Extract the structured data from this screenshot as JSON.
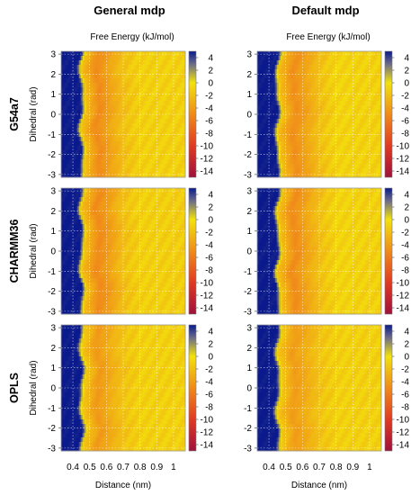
{
  "figure": {
    "columns": [
      "General mdp",
      "Default mdp"
    ],
    "rows": [
      "G54a7",
      "CHARMM36",
      "OPLS"
    ],
    "colorbar_label": "Free Energy (kJ/mol)",
    "xlabel": "Distance (nm)",
    "ylabel": "Dihedral (rad)"
  },
  "chart_data": [
    {
      "type": "heatmap",
      "row": "G54a7",
      "column": "General mdp",
      "xlabel": "",
      "ylabel": "Dihedral (rad)",
      "xlim": [
        0.33,
        1.07
      ],
      "ylim": [
        -3.14,
        3.14
      ],
      "xticks": [
        0.4,
        0.5,
        0.6,
        0.7,
        0.8,
        0.9,
        1
      ],
      "yticks": [
        3,
        2,
        1,
        0,
        -1,
        -2,
        -3
      ],
      "colorbar": {
        "label": "Free Energy (kJ/mol)",
        "range": [
          -15,
          5
        ],
        "ticks": [
          4,
          2,
          0,
          -2,
          -4,
          -6,
          -8,
          -10,
          -12,
          -14
        ]
      },
      "profile": {
        "x": [
          0.33,
          0.44,
          0.47,
          0.55,
          0.62,
          0.7,
          0.8,
          1.07
        ],
        "values": [
          5,
          5,
          -2,
          -5,
          -3.5,
          -2,
          -1,
          -1
        ]
      }
    },
    {
      "type": "heatmap",
      "row": "G54a7",
      "column": "Default mdp",
      "xlabel": "",
      "ylabel": "",
      "xlim": [
        0.33,
        1.07
      ],
      "ylim": [
        -3.14,
        3.14
      ],
      "xticks": [
        0.4,
        0.5,
        0.6,
        0.7,
        0.8,
        0.9,
        1
      ],
      "yticks": [
        3,
        2,
        1,
        0,
        -1,
        -2,
        -3
      ],
      "colorbar": {
        "label": "Free Energy (kJ/mol)",
        "range": [
          -15,
          5
        ],
        "ticks": [
          4,
          2,
          0,
          -2,
          -4,
          -6,
          -8,
          -10,
          -12,
          -14
        ]
      },
      "profile": {
        "x": [
          0.33,
          0.44,
          0.47,
          0.55,
          0.62,
          0.7,
          0.8,
          1.07
        ],
        "values": [
          5,
          5,
          -2,
          -4.8,
          -3.5,
          -2,
          -0.8,
          -1
        ]
      }
    },
    {
      "type": "heatmap",
      "row": "CHARMM36",
      "column": "General mdp",
      "xlabel": "",
      "ylabel": "Dihedral (rad)",
      "xlim": [
        0.33,
        1.07
      ],
      "ylim": [
        -3.14,
        3.14
      ],
      "xticks": [
        0.4,
        0.5,
        0.6,
        0.7,
        0.8,
        0.9,
        1
      ],
      "yticks": [
        3,
        2,
        1,
        0,
        -1,
        -2,
        -3
      ],
      "colorbar": {
        "label": "Free Energy (kJ/mol)",
        "range": [
          -15,
          5
        ],
        "ticks": [
          4,
          2,
          0,
          -2,
          -4,
          -6,
          -8,
          -10,
          -12,
          -14
        ]
      },
      "profile": {
        "x": [
          0.33,
          0.44,
          0.47,
          0.55,
          0.62,
          0.7,
          0.8,
          1.07
        ],
        "values": [
          5,
          5,
          -2,
          -5,
          -3.8,
          -2,
          -1,
          -1.2
        ]
      }
    },
    {
      "type": "heatmap",
      "row": "CHARMM36",
      "column": "Default mdp",
      "xlabel": "",
      "ylabel": "",
      "xlim": [
        0.33,
        1.07
      ],
      "ylim": [
        -3.14,
        3.14
      ],
      "xticks": [
        0.4,
        0.5,
        0.6,
        0.7,
        0.8,
        0.9,
        1
      ],
      "yticks": [
        3,
        2,
        1,
        0,
        -1,
        -2,
        -3
      ],
      "colorbar": {
        "label": "Free Energy (kJ/mol)",
        "range": [
          -15,
          5
        ],
        "ticks": [
          4,
          2,
          0,
          -2,
          -4,
          -6,
          -8,
          -10,
          -12,
          -14
        ]
      },
      "profile": {
        "x": [
          0.33,
          0.44,
          0.47,
          0.55,
          0.62,
          0.7,
          0.8,
          1.07
        ],
        "values": [
          5,
          5,
          -2,
          -5,
          -3.5,
          -2,
          -0.8,
          -1
        ]
      }
    },
    {
      "type": "heatmap",
      "row": "OPLS",
      "column": "General mdp",
      "xlabel": "Distance (nm)",
      "ylabel": "Dihedral (rad)",
      "xlim": [
        0.33,
        1.07
      ],
      "ylim": [
        -3.14,
        3.14
      ],
      "xticks": [
        0.4,
        0.5,
        0.6,
        0.7,
        0.8,
        0.9,
        1
      ],
      "yticks": [
        3,
        2,
        1,
        0,
        -1,
        -2,
        -3
      ],
      "colorbar": {
        "label": "Free Energy (kJ/mol)",
        "range": [
          -15,
          5
        ],
        "ticks": [
          4,
          2,
          0,
          -2,
          -4,
          -6,
          -8,
          -10,
          -12,
          -14
        ]
      },
      "profile": {
        "x": [
          0.33,
          0.44,
          0.47,
          0.55,
          0.62,
          0.7,
          0.8,
          1.07
        ],
        "values": [
          5,
          5,
          -1.5,
          -4.2,
          -3,
          -1.8,
          -1,
          -1
        ]
      }
    },
    {
      "type": "heatmap",
      "row": "OPLS",
      "column": "Default mdp",
      "xlabel": "Distance (nm)",
      "ylabel": "",
      "xlim": [
        0.33,
        1.07
      ],
      "ylim": [
        -3.14,
        3.14
      ],
      "xticks": [
        0.4,
        0.5,
        0.6,
        0.7,
        0.8,
        0.9,
        1
      ],
      "yticks": [
        3,
        2,
        1,
        0,
        -1,
        -2,
        -3
      ],
      "colorbar": {
        "label": "Free Energy (kJ/mol)",
        "range": [
          -15,
          5
        ],
        "ticks": [
          4,
          2,
          0,
          -2,
          -4,
          -6,
          -8,
          -10,
          -12,
          -14
        ]
      },
      "profile": {
        "x": [
          0.33,
          0.44,
          0.47,
          0.55,
          0.62,
          0.7,
          0.8,
          1.07
        ],
        "values": [
          5,
          5,
          -1.5,
          -4,
          -3,
          -1.8,
          -1,
          -1
        ]
      }
    }
  ]
}
